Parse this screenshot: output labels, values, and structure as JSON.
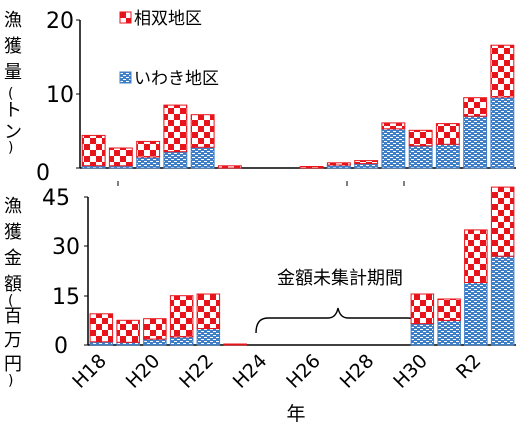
{
  "chart_data": [
    {
      "type": "bar",
      "stacked": true,
      "ylabel": "漁獲量（トン）",
      "ylim": [
        0,
        20
      ],
      "yticks": [
        0,
        10,
        20
      ],
      "categories": [
        "H18",
        "H19",
        "H20",
        "H21",
        "H22",
        "H23",
        "H24",
        "H25",
        "H26",
        "H27",
        "H28",
        "H29",
        "H30",
        "H31",
        "R2",
        "R3"
      ],
      "series": [
        {
          "name": "いわき地区",
          "values": [
            0.3,
            0.3,
            1.5,
            2.2,
            2.8,
            0.0,
            0,
            0,
            0,
            0.4,
            0.6,
            5.3,
            3.0,
            3.2,
            7.0,
            9.6
          ]
        },
        {
          "name": "相双地区",
          "values": [
            4.1,
            2.4,
            2.1,
            6.3,
            4.4,
            0.3,
            0,
            0,
            0.2,
            0.3,
            0.4,
            0.8,
            2.1,
            2.8,
            2.5,
            7.0
          ]
        }
      ],
      "legend": "top-left"
    },
    {
      "type": "bar",
      "stacked": true,
      "ylabel": "漁獲金額（百万円）",
      "xlabel": "年",
      "ylim": [
        0,
        45
      ],
      "yticks": [
        0,
        15,
        30,
        45
      ],
      "xticks": [
        "H18",
        "H20",
        "H22",
        "H24",
        "H26",
        "H28",
        "H30",
        "R2"
      ],
      "categories": [
        "H18",
        "H19",
        "H20",
        "H21",
        "H22",
        "H23",
        "H24",
        "H25",
        "H26",
        "H27",
        "H28",
        "H29",
        "H30",
        "H31",
        "R2",
        "R3"
      ],
      "series": [
        {
          "name": "いわき地区",
          "values": [
            1.0,
            0.8,
            1.8,
            2.5,
            5.0,
            0.0,
            0,
            0,
            0,
            0,
            0,
            0,
            6.5,
            7.5,
            19.0,
            27.0
          ]
        },
        {
          "name": "相双地区",
          "values": [
            8.5,
            6.7,
            6.2,
            12.5,
            10.5,
            0.3,
            0,
            0,
            0,
            0,
            0,
            0,
            9.0,
            6.5,
            16.0,
            21.0
          ]
        }
      ],
      "annotation": "金額未集計期間"
    }
  ],
  "colors": {
    "sousou": "#e8141c",
    "iwaki": "#3f7fc7"
  }
}
